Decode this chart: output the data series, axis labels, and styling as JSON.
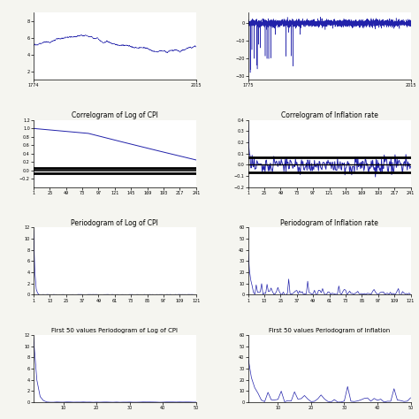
{
  "title_correlogram_cpi": "Correlogram of Log of CPI",
  "title_correlogram_infl": "Correlogram of Inflation rate",
  "title_periodogram_cpi": "Periodogram of Log of CPI",
  "title_periodogram_infl": "Periodogram of Inflation rate",
  "title_first50_cpi": "First 50 values Periodogram of Log of CPI",
  "title_first50_infl": "First 50 values Periodogram of Inflation",
  "line_color": "#2222aa",
  "confidence_band_color": "#000000",
  "figure_background": "#f5f5f0",
  "axes_background": "#ffffff",
  "conf_upper": 0.065,
  "conf_lower": -0.065,
  "acf_cpi_ylim": [
    -0.4,
    1.2
  ],
  "acf_infl_ylim": [
    -0.2,
    0.4
  ],
  "per_cpi_ylim": [
    0,
    12
  ],
  "per_infl_ylim": [
    0,
    60
  ],
  "ts_cpi_yticks": [
    2,
    4,
    6,
    8
  ],
  "ts_infl_yticks": [
    -30,
    -20,
    -10,
    0
  ],
  "ts_cpi_xlim": [
    1774,
    2015
  ],
  "ts_infl_xlim": [
    1775,
    2015
  ]
}
